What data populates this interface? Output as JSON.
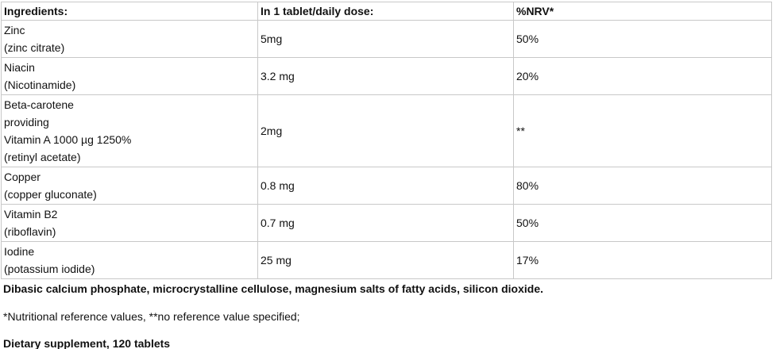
{
  "table": {
    "header": [
      "Ingredients:",
      "In 1 tablet/daily dose:",
      "%NRV*"
    ],
    "rows": [
      [
        [
          "Zinc",
          "(zinc citrate)"
        ],
        "5mg",
        "50%"
      ],
      [
        [
          "Niacin",
          "(Nicotinamide)"
        ],
        "3.2 mg",
        "20%"
      ],
      [
        [
          "Beta-carotene",
          "providing",
          "Vitamin A 1000 µg 1250%",
          "(retinyl acetate)"
        ],
        "2mg",
        "**"
      ],
      [
        [
          "Copper",
          "(copper gluconate)"
        ],
        "0.8 mg",
        "80%"
      ],
      [
        [
          "Vitamin B2",
          "(riboflavin)"
        ],
        "0.7 mg",
        "50%"
      ],
      [
        [
          "Iodine",
          "(potassium iodide)"
        ],
        "25 mg",
        "17%"
      ]
    ]
  },
  "other_ingredients": "Dibasic calcium phosphate, microcrystalline cellulose, magnesium salts of fatty acids, silicon dioxide.",
  "footnote": "*Nutritional reference values, **no reference value specified;",
  "product": "Dietary supplement, 120 tablets"
}
